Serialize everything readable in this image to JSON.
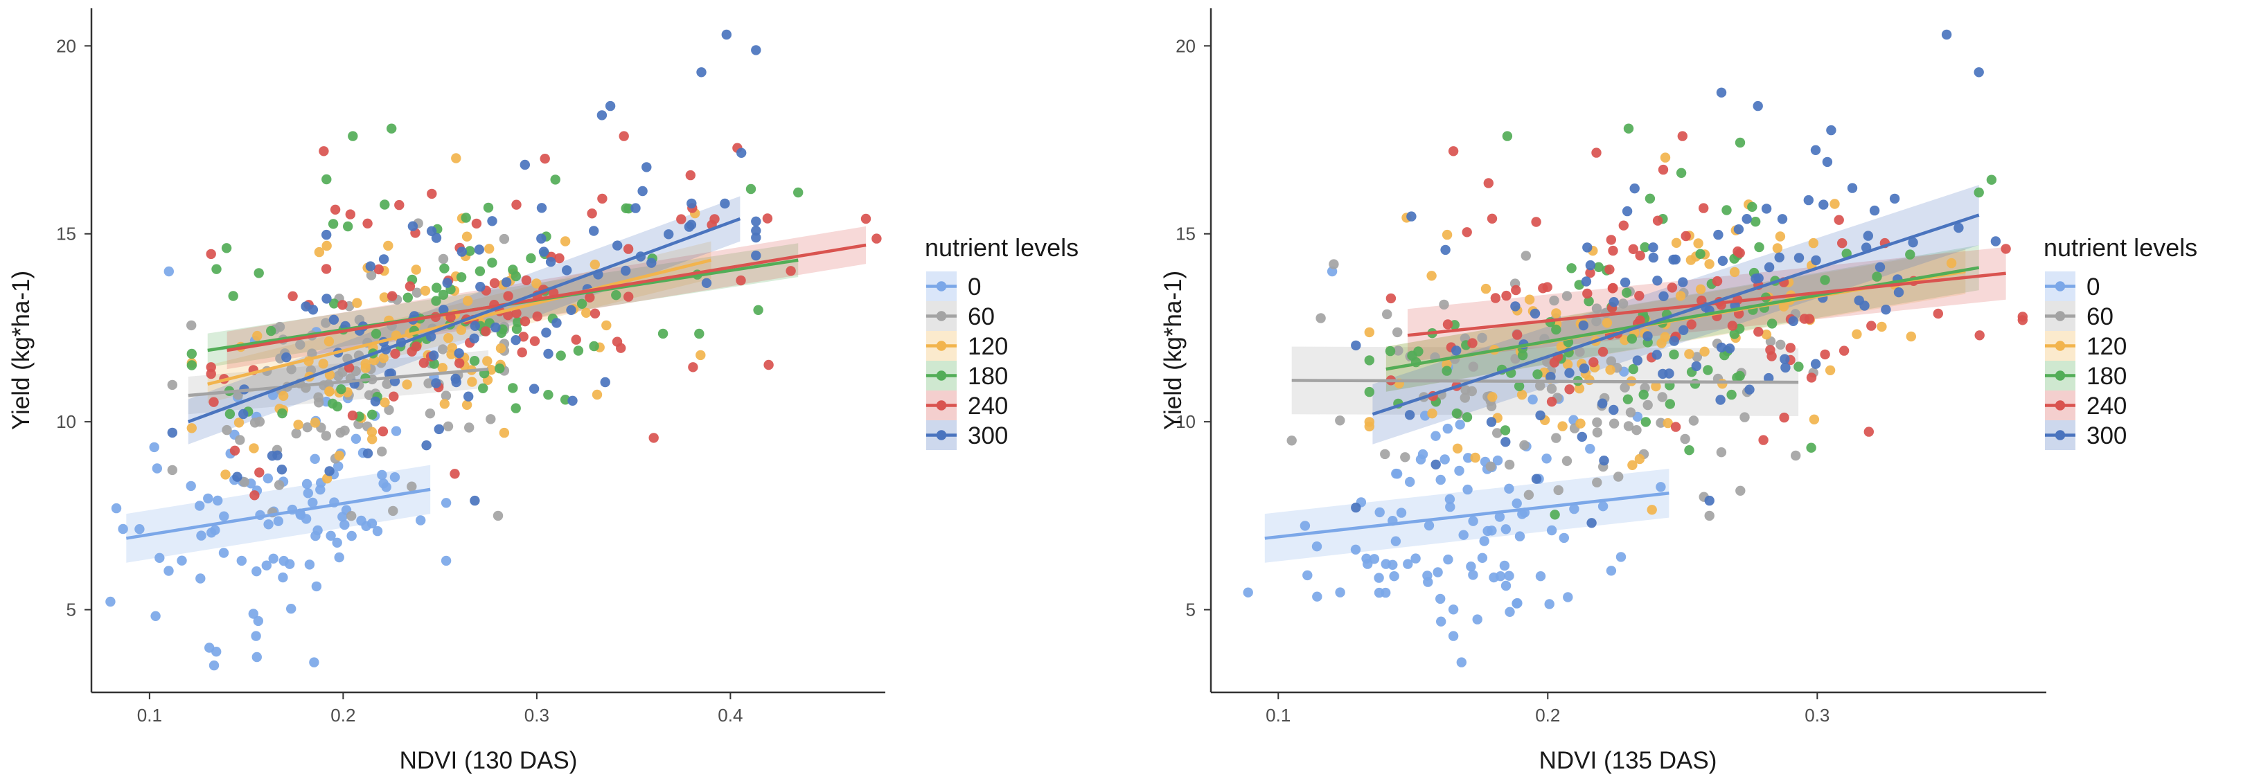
{
  "chart_data": [
    {
      "type": "scatter",
      "title": "",
      "xlabel": "NDVI (130 DAS)",
      "ylabel": "Yield (kg*ha-1)",
      "xlim": [
        0.07,
        0.48
      ],
      "ylim": [
        2.8,
        21.0
      ],
      "xticks": [
        "0.1",
        "0.2",
        "0.3",
        "0.4"
      ],
      "yticks": [
        "5",
        "10",
        "15",
        "20"
      ],
      "legend_title": "nutrient levels",
      "series": [
        {
          "name": "0",
          "color": "#7BA7E8",
          "fit": {
            "x": [
              0.088,
              0.245
            ],
            "y": [
              6.9,
              8.2
            ]
          },
          "band": 0.65,
          "x_center": 0.17,
          "y_center": 7.6,
          "x_spread": 0.04,
          "y_spread": 1.6,
          "n": 95,
          "extra_points": [
            [
              0.11,
              14.0
            ],
            [
              0.185,
              3.6
            ],
            [
              0.155,
              4.3
            ]
          ]
        },
        {
          "name": "60",
          "color": "#A3A3A3",
          "fit": {
            "x": [
              0.12,
              0.275
            ],
            "y": [
              10.7,
              11.4
            ]
          },
          "band": 0.5,
          "x_center": 0.2,
          "y_center": 11.0,
          "x_spread": 0.045,
          "y_spread": 1.6,
          "n": 90,
          "extra_points": [
            [
              0.28,
              7.5
            ]
          ]
        },
        {
          "name": "120",
          "color": "#F2B44D",
          "fit": {
            "x": [
              0.13,
              0.39
            ],
            "y": [
              11.0,
              14.3
            ]
          },
          "band": 0.5,
          "x_center": 0.24,
          "y_center": 12.7,
          "x_spread": 0.065,
          "y_spread": 1.5,
          "n": 90,
          "extra_points": []
        },
        {
          "name": "180",
          "color": "#52AD57",
          "fit": {
            "x": [
              0.13,
              0.435
            ],
            "y": [
              11.9,
              14.3
            ]
          },
          "band": 0.45,
          "x_center": 0.25,
          "y_center": 13.0,
          "x_spread": 0.07,
          "y_spread": 1.7,
          "n": 85,
          "extra_points": [
            [
              0.205,
              17.6
            ],
            [
              0.225,
              17.8
            ],
            [
              0.435,
              16.1
            ]
          ]
        },
        {
          "name": "240",
          "color": "#D9534F",
          "fit": {
            "x": [
              0.14,
              0.47
            ],
            "y": [
              11.9,
              14.7
            ]
          },
          "band": 0.5,
          "x_center": 0.27,
          "y_center": 13.1,
          "x_spread": 0.08,
          "y_spread": 1.7,
          "n": 85,
          "extra_points": [
            [
              0.19,
              17.2
            ],
            [
              0.47,
              15.4
            ],
            [
              0.345,
              17.6
            ]
          ]
        },
        {
          "name": "300",
          "color": "#4A74BE",
          "fit": {
            "x": [
              0.12,
              0.405
            ],
            "y": [
              10.0,
              15.4
            ]
          },
          "band": 0.6,
          "x_center": 0.28,
          "y_center": 13.3,
          "x_spread": 0.075,
          "y_spread": 1.8,
          "n": 90,
          "extra_points": [
            [
              0.398,
              20.3
            ],
            [
              0.385,
              19.3
            ],
            [
              0.338,
              18.4
            ],
            [
              0.268,
              7.9
            ]
          ]
        }
      ]
    },
    {
      "type": "scatter",
      "title": "",
      "xlabel": "NDVI (135 DAS)",
      "ylabel": "Yield (kg*ha-1)",
      "xlim": [
        0.075,
        0.385
      ],
      "ylim": [
        2.8,
        21.0
      ],
      "xticks": [
        "0.1",
        "0.2",
        "0.3"
      ],
      "yticks": [
        "5",
        "10",
        "15",
        "20"
      ],
      "legend_title": "nutrient levels",
      "series": [
        {
          "name": "0",
          "color": "#7BA7E8",
          "fit": {
            "x": [
              0.095,
              0.245
            ],
            "y": [
              6.9,
              8.1
            ]
          },
          "band": 0.65,
          "x_center": 0.17,
          "y_center": 7.6,
          "x_spread": 0.03,
          "y_spread": 1.6,
          "n": 95,
          "extra_points": [
            [
              0.12,
              14.0
            ],
            [
              0.168,
              3.6
            ],
            [
              0.165,
              4.3
            ]
          ]
        },
        {
          "name": "60",
          "color": "#A3A3A3",
          "fit": {
            "x": [
              0.105,
              0.293
            ],
            "y": [
              11.1,
              11.05
            ]
          },
          "band": 0.9,
          "x_center": 0.2,
          "y_center": 11.0,
          "x_spread": 0.04,
          "y_spread": 1.6,
          "n": 90,
          "extra_points": [
            [
              0.105,
              9.5
            ],
            [
              0.26,
              7.5
            ],
            [
              0.292,
              9.1
            ]
          ]
        },
        {
          "name": "120",
          "color": "#F2B44D",
          "fit": {
            "x": [
              0.14,
              0.355
            ],
            "y": [
              11.4,
              14.0
            ]
          },
          "band": 0.6,
          "x_center": 0.23,
          "y_center": 12.7,
          "x_spread": 0.05,
          "y_spread": 1.5,
          "n": 90,
          "extra_points": []
        },
        {
          "name": "180",
          "color": "#52AD57",
          "fit": {
            "x": [
              0.14,
              0.36
            ],
            "y": [
              11.4,
              14.1
            ]
          },
          "band": 0.6,
          "x_center": 0.235,
          "y_center": 13.0,
          "x_spread": 0.05,
          "y_spread": 1.7,
          "n": 85,
          "extra_points": [
            [
              0.185,
              17.6
            ],
            [
              0.23,
              17.8
            ],
            [
              0.36,
              16.1
            ]
          ]
        },
        {
          "name": "240",
          "color": "#D9534F",
          "fit": {
            "x": [
              0.148,
              0.37
            ],
            "y": [
              12.3,
              13.95
            ]
          },
          "band": 0.7,
          "x_center": 0.245,
          "y_center": 13.1,
          "x_spread": 0.055,
          "y_spread": 1.7,
          "n": 85,
          "extra_points": [
            [
              0.165,
              17.2
            ],
            [
              0.37,
              14.6
            ],
            [
              0.25,
              17.6
            ]
          ]
        },
        {
          "name": "300",
          "color": "#4A74BE",
          "fit": {
            "x": [
              0.135,
              0.36
            ],
            "y": [
              10.2,
              15.5
            ]
          },
          "band": 0.8,
          "x_center": 0.25,
          "y_center": 13.3,
          "x_spread": 0.055,
          "y_spread": 1.8,
          "n": 90,
          "extra_points": [
            [
              0.348,
              20.3
            ],
            [
              0.36,
              19.3
            ],
            [
              0.278,
              18.4
            ],
            [
              0.26,
              7.9
            ]
          ]
        }
      ]
    }
  ]
}
